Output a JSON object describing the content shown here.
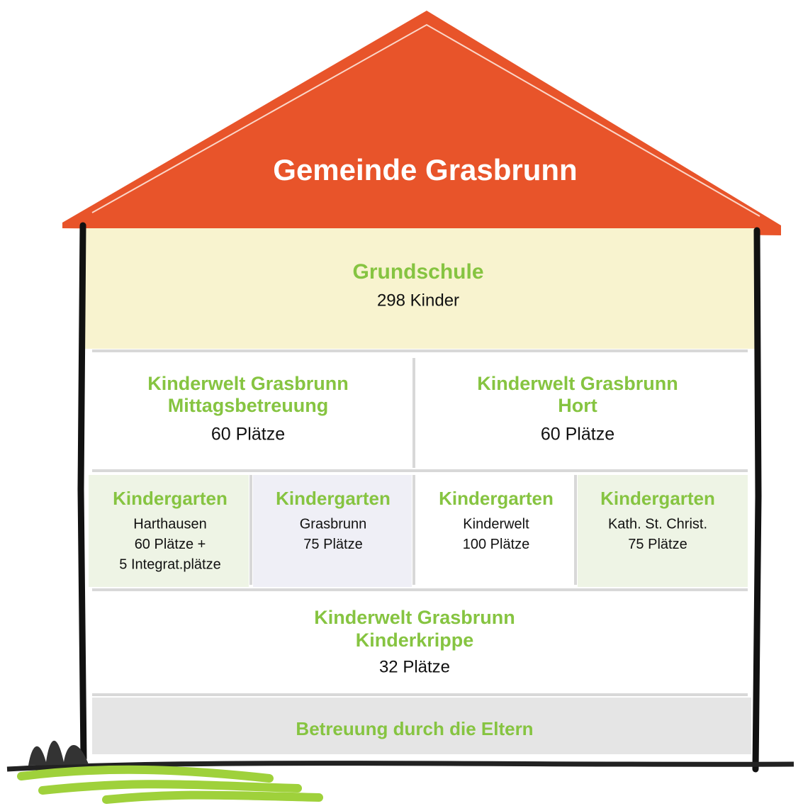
{
  "title": "Gemeinde Grasbrunn",
  "rows": [
    [
      {
        "name": [
          "Grundschule"
        ],
        "info": [
          "298 Kinder"
        ]
      }
    ],
    [
      {
        "name": [
          "Kinderwelt Grasbrunn",
          "Mittagsbetreuung"
        ],
        "info": [
          "60 Plätze"
        ]
      },
      {
        "name": [
          "Kinderwelt Grasbrunn",
          "Hort"
        ],
        "info": [
          "60 Plätze"
        ]
      }
    ],
    [
      {
        "name": [
          "Kindergarten"
        ],
        "info": [
          "Harthausen",
          "60 Plätze +",
          "5 Integrat.plätze"
        ]
      },
      {
        "name": [
          "Kindergarten"
        ],
        "info": [
          "Grasbrunn",
          "75 Plätze"
        ]
      },
      {
        "name": [
          "Kindergarten"
        ],
        "info": [
          "Kinderwelt",
          "100 Plätze"
        ]
      },
      {
        "name": [
          "Kindergarten"
        ],
        "info": [
          "Kath. St. Christ.",
          "75 Plätze"
        ]
      }
    ],
    [
      {
        "name": [
          "Kinderwelt Grasbrunn",
          "Kinderkrippe"
        ],
        "info": [
          "32 Plätze"
        ]
      }
    ],
    [
      {
        "name": [
          "Betreuung durch die Eltern"
        ],
        "info": []
      }
    ]
  ]
}
